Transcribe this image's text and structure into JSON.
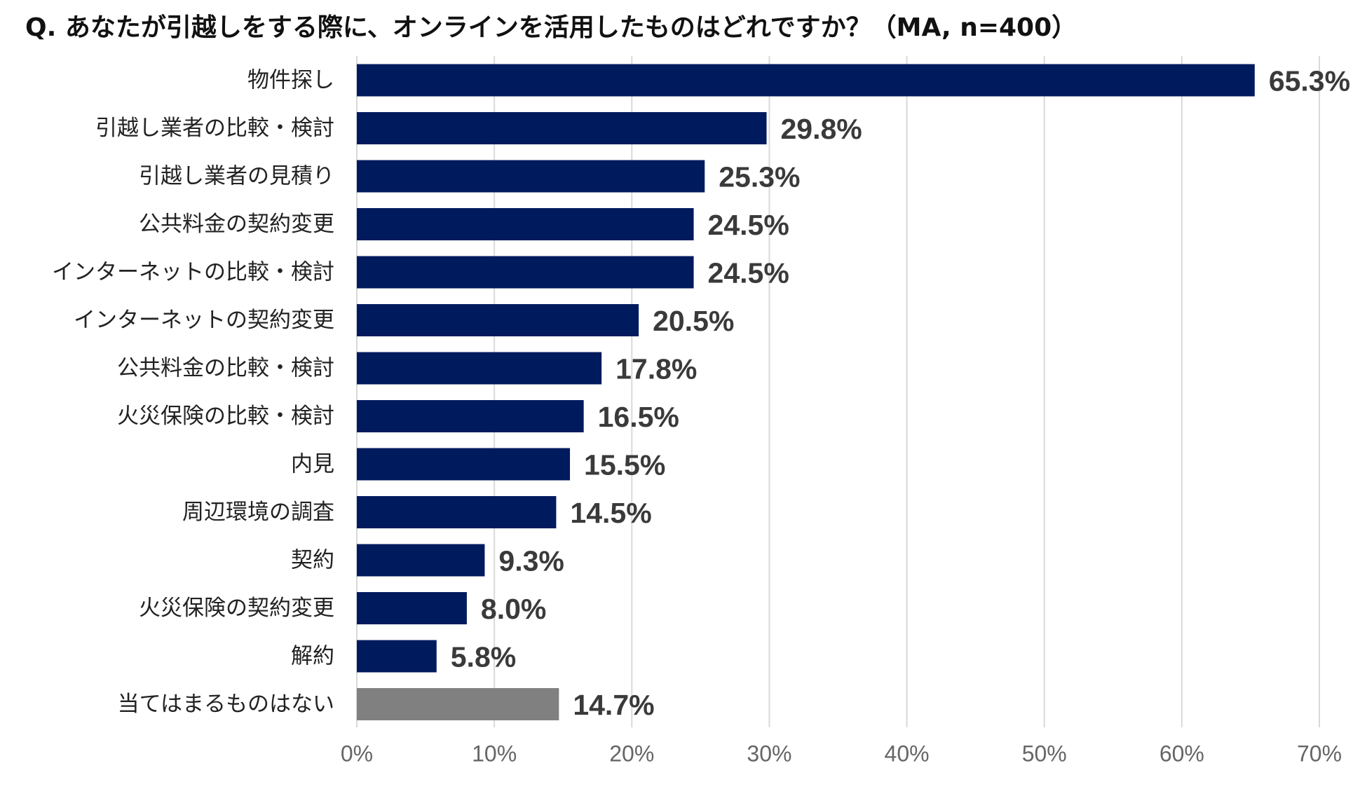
{
  "chart_data": {
    "type": "bar",
    "orientation": "horizontal",
    "title": "Q. あなたが引越しをする際に、オンラインを活用したものはどれですか？（MA, n=400）",
    "categories": [
      "物件探し",
      "引越し業者の比較・検討",
      "引越し業者の見積り",
      "公共料金の契約変更",
      "インターネットの比較・検討",
      "インターネットの契約変更",
      "公共料金の比較・検討",
      "火災保険の比較・検討",
      "内見",
      "周辺環境の調査",
      "契約",
      "火災保険の契約変更",
      "解約",
      "当てはまるものはない"
    ],
    "values": [
      65.3,
      29.8,
      25.3,
      24.5,
      24.5,
      20.5,
      17.8,
      16.5,
      15.5,
      14.5,
      9.3,
      8.0,
      5.8,
      14.7
    ],
    "value_labels": [
      "65.3%",
      "29.8%",
      "25.3%",
      "24.5%",
      "24.5%",
      "20.5%",
      "17.8%",
      "16.5%",
      "15.5%",
      "14.5%",
      "9.3%",
      "8.0%",
      "5.8%",
      "14.7%"
    ],
    "xlim": [
      0,
      70
    ],
    "x_ticks": [
      0,
      10,
      20,
      30,
      40,
      50,
      60,
      70
    ],
    "x_tick_labels": [
      "0%",
      "10%",
      "20%",
      "30%",
      "40%",
      "50%",
      "60%",
      "70%"
    ],
    "grid": true,
    "colors": {
      "primary": "#001a5e",
      "none_bar": "#808080",
      "grid": "#d9d9d9"
    },
    "gray_category_index": 13
  }
}
